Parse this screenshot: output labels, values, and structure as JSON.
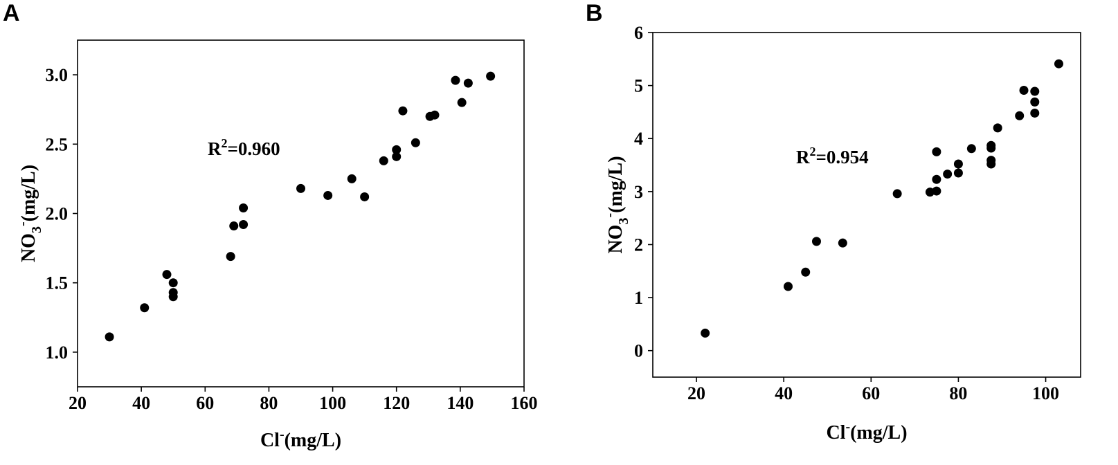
{
  "chart_data": [
    {
      "panel": "A",
      "type": "scatter",
      "annotation": {
        "prefix": "R",
        "sup": "2",
        "value": "=0.960"
      },
      "xlabel": {
        "base": "Cl",
        "sup": "-",
        "unit": "(mg/L)"
      },
      "ylabel": {
        "base": "NO",
        "sub": "3",
        "sup": "-",
        "unit": "(mg/L)"
      },
      "xlim": [
        20,
        160
      ],
      "ylim": [
        0.75,
        3.25
      ],
      "xticks": [
        20,
        40,
        60,
        80,
        100,
        120,
        140,
        160
      ],
      "xtick_labels": [
        "20",
        "40",
        "60",
        "80",
        "100",
        "120",
        "140",
        "160"
      ],
      "yticks": [
        1.0,
        1.5,
        2.0,
        2.5,
        3.0
      ],
      "ytick_labels": [
        "1.0",
        "1.5",
        "2.0",
        "2.5",
        "3.0"
      ],
      "points": [
        [
          30,
          1.11
        ],
        [
          41,
          1.32
        ],
        [
          48,
          1.56
        ],
        [
          50,
          1.5
        ],
        [
          50,
          1.43
        ],
        [
          50,
          1.4
        ],
        [
          68,
          1.69
        ],
        [
          69,
          1.91
        ],
        [
          72,
          1.92
        ],
        [
          72,
          2.04
        ],
        [
          90,
          2.18
        ],
        [
          98.5,
          2.13
        ],
        [
          106,
          2.25
        ],
        [
          110,
          2.12
        ],
        [
          116,
          2.38
        ],
        [
          120,
          2.46
        ],
        [
          120,
          2.41
        ],
        [
          122,
          2.74
        ],
        [
          126,
          2.51
        ],
        [
          130.5,
          2.7
        ],
        [
          132,
          2.71
        ],
        [
          138.5,
          2.96
        ],
        [
          140.5,
          2.8
        ],
        [
          142.5,
          2.94
        ],
        [
          149.5,
          2.99
        ]
      ]
    },
    {
      "panel": "B",
      "type": "scatter",
      "annotation": {
        "prefix": "R",
        "sup": "2",
        "value": "=0.954"
      },
      "xlabel": {
        "base": "Cl",
        "sup": "-",
        "unit": "(mg/L)"
      },
      "ylabel": {
        "base": "NO",
        "sub": "3",
        "sup": "-",
        "unit": "(mg/L)"
      },
      "xlim": [
        10,
        108
      ],
      "ylim": [
        -0.5,
        6
      ],
      "xticks": [
        20,
        40,
        60,
        80,
        100
      ],
      "xtick_labels": [
        "20",
        "40",
        "60",
        "80",
        "100"
      ],
      "yticks": [
        0,
        1,
        2,
        3,
        4,
        5,
        6
      ],
      "ytick_labels": [
        "0",
        "1",
        "2",
        "3",
        "4",
        "5",
        "6"
      ],
      "points": [
        [
          22,
          0.33
        ],
        [
          41,
          1.21
        ],
        [
          45,
          1.48
        ],
        [
          47.5,
          2.06
        ],
        [
          53.5,
          2.03
        ],
        [
          66,
          2.96
        ],
        [
          73.5,
          2.99
        ],
        [
          75,
          3.01
        ],
        [
          75,
          3.23
        ],
        [
          75,
          3.75
        ],
        [
          77.5,
          3.33
        ],
        [
          80,
          3.35
        ],
        [
          80,
          3.52
        ],
        [
          83,
          3.81
        ],
        [
          87.5,
          3.52
        ],
        [
          87.5,
          3.59
        ],
        [
          87.5,
          3.82
        ],
        [
          87.5,
          3.87
        ],
        [
          89,
          4.2
        ],
        [
          94,
          4.43
        ],
        [
          95,
          4.91
        ],
        [
          97.5,
          4.48
        ],
        [
          97.5,
          4.69
        ],
        [
          97.5,
          4.89
        ],
        [
          103,
          5.41
        ]
      ]
    }
  ]
}
